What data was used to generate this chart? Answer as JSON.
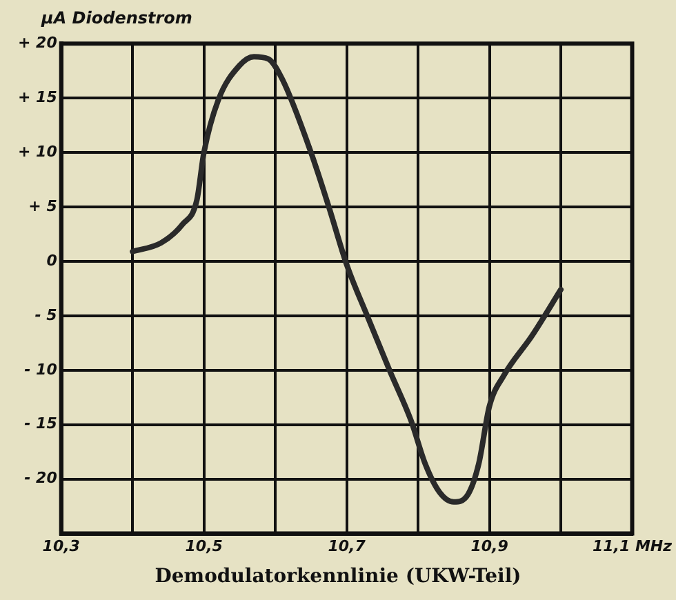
{
  "chart_data": {
    "type": "line",
    "title": "Demodulatorkennlinie (UKW-Teil)",
    "ylabel": "µA Diodenstrom",
    "x": [
      10.4,
      10.44,
      10.47,
      10.49,
      10.5,
      10.52,
      10.55,
      10.57,
      10.59,
      10.61,
      10.65,
      10.675,
      10.7,
      10.73,
      10.76,
      10.79,
      10.81,
      10.83,
      10.85,
      10.87,
      10.885,
      10.9,
      10.92,
      10.96,
      11.0
    ],
    "series": [
      {
        "color": "#2a2a2a",
        "values": [
          0.9,
          1.7,
          3.4,
          5.6,
          10,
          14.8,
          18,
          18.8,
          18.6,
          16.7,
          10,
          5,
          -0.3,
          -5.2,
          -10,
          -14.6,
          -18.6,
          -21.2,
          -22.1,
          -21.4,
          -18.6,
          -13.3,
          -10.5,
          -6.8,
          -2.6
        ]
      }
    ],
    "xlim": [
      10.3,
      11.1
    ],
    "xticks": [
      {
        "value": 10.3,
        "label": "10,3"
      },
      {
        "value": 10.4,
        "label": null
      },
      {
        "value": 10.5,
        "label": "10,5"
      },
      {
        "value": 10.6,
        "label": null
      },
      {
        "value": 10.7,
        "label": "10,7"
      },
      {
        "value": 10.8,
        "label": null
      },
      {
        "value": 10.9,
        "label": "10,9"
      },
      {
        "value": 11.0,
        "label": null
      },
      {
        "value": 11.1,
        "label": "11,1 MHz"
      }
    ],
    "ylim": [
      -25,
      20
    ],
    "yticks": [
      {
        "value": 20,
        "label": "+ 20"
      },
      {
        "value": 15,
        "label": "+ 15"
      },
      {
        "value": 10,
        "label": "+ 10"
      },
      {
        "value": 5,
        "label": "+ 5"
      },
      0,
      {
        "value": -5,
        "label": "- 5"
      },
      {
        "value": -10,
        "label": "- 10"
      },
      {
        "value": -15,
        "label": "- 15"
      },
      {
        "value": -20,
        "label": "- 20"
      },
      {
        "value": -25,
        "label": null
      }
    ],
    "grid": true,
    "legend": false,
    "marker": "none",
    "line_style": "solid"
  }
}
